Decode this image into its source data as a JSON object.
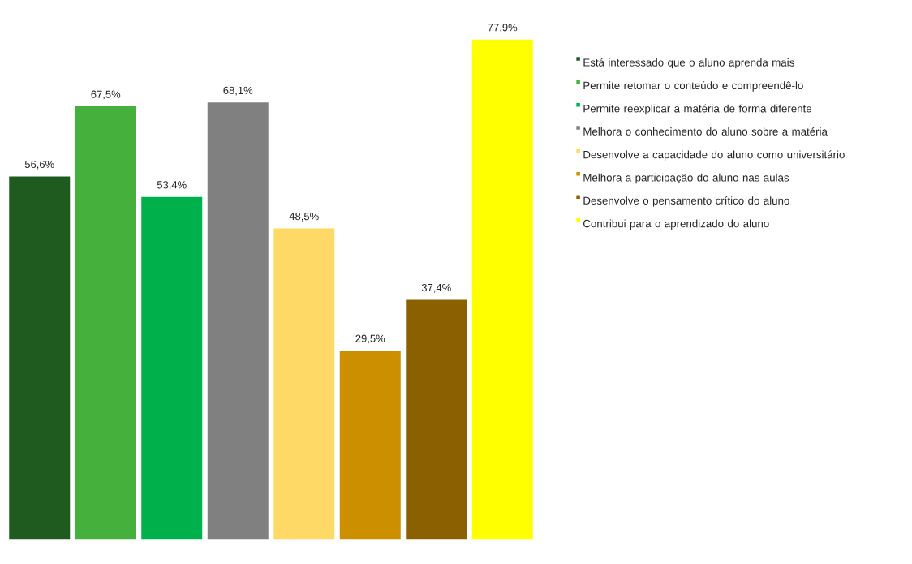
{
  "chart_data": {
    "type": "bar",
    "categories": [
      null
    ],
    "legend": "right",
    "series": [
      {
        "name": "Está interessado que o aluno aprenda mais",
        "color": "#1f5a1f",
        "values": [
          56.6
        ],
        "value_labels": [
          "56,6%"
        ]
      },
      {
        "name": "Permite retomar o conteúdo e compreendê-lo",
        "color": "#45b03c",
        "values": [
          67.5
        ],
        "value_labels": [
          "67,5%"
        ]
      },
      {
        "name": "Permite reexplicar a matéria de forma diferente",
        "color": "#00b04a",
        "values": [
          53.4
        ],
        "value_labels": [
          "53,4%"
        ]
      },
      {
        "name": "Melhora o conhecimento do aluno sobre a matéria",
        "color": "#808080",
        "values": [
          68.1
        ],
        "value_labels": [
          "68,1%"
        ]
      },
      {
        "name": "Desenvolve a capacidade do aluno como universitário",
        "color": "#ffd966",
        "values": [
          48.5
        ],
        "value_labels": [
          "48,5%"
        ]
      },
      {
        "name": "Melhora a participação do aluno nas aulas",
        "color": "#cc8f00",
        "values": [
          29.5
        ],
        "value_labels": [
          "29,5%"
        ]
      },
      {
        "name": "Desenvolve o pensamento crítico do aluno",
        "color": "#8a6000",
        "values": [
          37.4
        ],
        "value_labels": [
          "37,4%"
        ]
      },
      {
        "name": "Contribui para o aprendizado do aluno",
        "color": "#ffff00",
        "values": [
          77.9
        ],
        "value_labels": [
          "77,9%"
        ]
      }
    ]
  }
}
